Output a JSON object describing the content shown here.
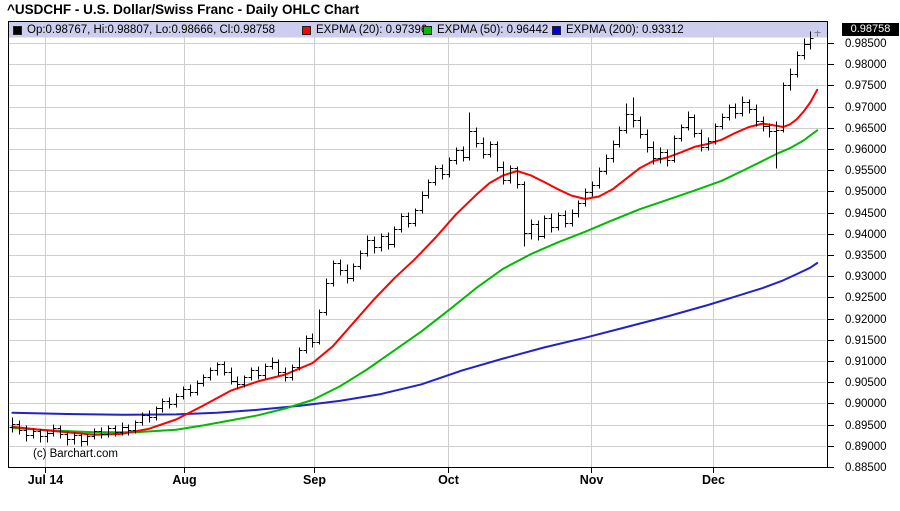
{
  "title": "^USDCHF - U.S. Dollar/Swiss Franc - Daily OHLC Chart",
  "watermark": "(c) Barchart.com",
  "current_price_label": "0.98758",
  "legend": {
    "ohlc": {
      "swatch_color": "#000000",
      "label": "Op:0.98767, Hi:0.98807, Lo:0.98666, Cl:0.98758"
    },
    "expma20": {
      "swatch_color": "#ff0000",
      "label": "EXPMA (20): 0.97396"
    },
    "expma50": {
      "swatch_color": "#00bb00",
      "label": "EXPMA (50): 0.96442"
    },
    "expma200": {
      "swatch_color": "#0000dd",
      "label": "EXPMA (200): 0.93312"
    }
  },
  "chart_data": {
    "type": "bar",
    "subtype": "ohlc-daily",
    "title": "^USDCHF - U.S. Dollar/Swiss Franc - Daily OHLC Chart",
    "xlabel": "",
    "ylabel": "",
    "ylim": [
      0.885,
      0.985
    ],
    "grid": true,
    "colors": {
      "bar": "#000000",
      "current_bar": "#808088",
      "grid": "#cecece",
      "band": "#cdcdee",
      "border": "#000000",
      "price_tag_bg": "#000000"
    },
    "x_ticks": [
      {
        "label": "Jul 14",
        "index": 4.8
      },
      {
        "label": "Aug",
        "index": 25.1
      },
      {
        "label": "Sep",
        "index": 44.2
      },
      {
        "label": "Oct",
        "index": 63.9
      },
      {
        "label": "Nov",
        "index": 84.8
      },
      {
        "label": "Dec",
        "index": 102.7
      }
    ],
    "y_ticks": [
      {
        "value": 0.985,
        "label": "0.98500"
      },
      {
        "value": 0.98,
        "label": "0.98000"
      },
      {
        "value": 0.975,
        "label": "0.97500"
      },
      {
        "value": 0.97,
        "label": "0.97000"
      },
      {
        "value": 0.965,
        "label": "0.96500"
      },
      {
        "value": 0.96,
        "label": "0.96000"
      },
      {
        "value": 0.955,
        "label": "0.95500"
      },
      {
        "value": 0.95,
        "label": "0.95000"
      },
      {
        "value": 0.945,
        "label": "0.94500"
      },
      {
        "value": 0.94,
        "label": "0.94000"
      },
      {
        "value": 0.935,
        "label": "0.93500"
      },
      {
        "value": 0.93,
        "label": "0.93000"
      },
      {
        "value": 0.925,
        "label": "0.92500"
      },
      {
        "value": 0.92,
        "label": "0.92000"
      },
      {
        "value": 0.915,
        "label": "0.91500"
      },
      {
        "value": 0.91,
        "label": "0.91000"
      },
      {
        "value": 0.905,
        "label": "0.90500"
      },
      {
        "value": 0.9,
        "label": "0.90000"
      },
      {
        "value": 0.895,
        "label": "0.89500"
      },
      {
        "value": 0.89,
        "label": "0.89000"
      },
      {
        "value": 0.885,
        "label": "0.88500"
      }
    ],
    "last": {
      "open": 0.98767,
      "high": 0.98807,
      "low": 0.98666,
      "close": 0.98758
    },
    "current_bar_index": 118,
    "bars_ohlc": [
      [
        0.8945,
        0.8968,
        0.8932,
        0.8952
      ],
      [
        0.8952,
        0.896,
        0.8928,
        0.8938
      ],
      [
        0.8938,
        0.8948,
        0.8912,
        0.8925
      ],
      [
        0.8925,
        0.8942,
        0.8918,
        0.8935
      ],
      [
        0.8935,
        0.894,
        0.891,
        0.8922
      ],
      [
        0.8922,
        0.8938,
        0.8908,
        0.893
      ],
      [
        0.893,
        0.8952,
        0.8922,
        0.8942
      ],
      [
        0.8942,
        0.8948,
        0.8918,
        0.8928
      ],
      [
        0.8928,
        0.8935,
        0.8902,
        0.8915
      ],
      [
        0.8915,
        0.8932,
        0.8905,
        0.8925
      ],
      [
        0.8925,
        0.893,
        0.89,
        0.8912
      ],
      [
        0.8912,
        0.8928,
        0.8902,
        0.8922
      ],
      [
        0.8922,
        0.8942,
        0.8915,
        0.8935
      ],
      [
        0.8935,
        0.8945,
        0.8918,
        0.8928
      ],
      [
        0.8928,
        0.895,
        0.892,
        0.8942
      ],
      [
        0.8942,
        0.8948,
        0.8922,
        0.8932
      ],
      [
        0.8932,
        0.8955,
        0.8925,
        0.8945
      ],
      [
        0.8945,
        0.8952,
        0.8925,
        0.8938
      ],
      [
        0.8938,
        0.8962,
        0.893,
        0.8955
      ],
      [
        0.8955,
        0.898,
        0.8948,
        0.8972
      ],
      [
        0.8972,
        0.8985,
        0.8955,
        0.8968
      ],
      [
        0.8968,
        0.8995,
        0.896,
        0.8988
      ],
      [
        0.8988,
        0.9012,
        0.898,
        0.9005
      ],
      [
        0.9005,
        0.9015,
        0.8988,
        0.8998
      ],
      [
        0.8998,
        0.9025,
        0.8992,
        0.9018
      ],
      [
        0.9018,
        0.9042,
        0.901,
        0.9035
      ],
      [
        0.9035,
        0.9045,
        0.9018,
        0.9028
      ],
      [
        0.9028,
        0.9055,
        0.902,
        0.9048
      ],
      [
        0.9048,
        0.907,
        0.904,
        0.9062
      ],
      [
        0.9062,
        0.9085,
        0.9055,
        0.9078
      ],
      [
        0.9078,
        0.9098,
        0.9068,
        0.9092
      ],
      [
        0.9092,
        0.91,
        0.9068,
        0.9075
      ],
      [
        0.9075,
        0.9085,
        0.9045,
        0.9052
      ],
      [
        0.9052,
        0.9065,
        0.9035,
        0.9045
      ],
      [
        0.9045,
        0.9068,
        0.9038,
        0.9062
      ],
      [
        0.9062,
        0.9085,
        0.9055,
        0.9078
      ],
      [
        0.9078,
        0.9088,
        0.9058,
        0.9068
      ],
      [
        0.9068,
        0.9095,
        0.906,
        0.9088
      ],
      [
        0.9088,
        0.911,
        0.908,
        0.9098
      ],
      [
        0.9098,
        0.9105,
        0.9068,
        0.9075
      ],
      [
        0.9075,
        0.9085,
        0.9052,
        0.9062
      ],
      [
        0.9062,
        0.9092,
        0.9055,
        0.9085
      ],
      [
        0.9085,
        0.9132,
        0.9078,
        0.9125
      ],
      [
        0.9125,
        0.9162,
        0.9118,
        0.9155
      ],
      [
        0.9155,
        0.9165,
        0.9132,
        0.9145
      ],
      [
        0.9145,
        0.9222,
        0.914,
        0.9215
      ],
      [
        0.9215,
        0.9295,
        0.9208,
        0.9285
      ],
      [
        0.9285,
        0.9338,
        0.9278,
        0.933
      ],
      [
        0.933,
        0.934,
        0.9302,
        0.9315
      ],
      [
        0.9315,
        0.9328,
        0.9285,
        0.9295
      ],
      [
        0.9295,
        0.9332,
        0.9288,
        0.9325
      ],
      [
        0.9325,
        0.9362,
        0.9318,
        0.9355
      ],
      [
        0.9355,
        0.9398,
        0.9348,
        0.9385
      ],
      [
        0.9385,
        0.9395,
        0.9355,
        0.9368
      ],
      [
        0.9368,
        0.9402,
        0.936,
        0.9395
      ],
      [
        0.9395,
        0.9405,
        0.9365,
        0.9375
      ],
      [
        0.9375,
        0.9418,
        0.9368,
        0.9412
      ],
      [
        0.9412,
        0.945,
        0.9405,
        0.9442
      ],
      [
        0.9442,
        0.9452,
        0.9415,
        0.9425
      ],
      [
        0.9425,
        0.9462,
        0.9418,
        0.9455
      ],
      [
        0.9455,
        0.95,
        0.9448,
        0.9492
      ],
      [
        0.9492,
        0.953,
        0.9485,
        0.9522
      ],
      [
        0.9522,
        0.9562,
        0.9515,
        0.9555
      ],
      [
        0.9555,
        0.9565,
        0.953,
        0.9542
      ],
      [
        0.9542,
        0.9582,
        0.9535,
        0.9575
      ],
      [
        0.9575,
        0.9605,
        0.9565,
        0.9598
      ],
      [
        0.9598,
        0.9608,
        0.9572,
        0.9582
      ],
      [
        0.9582,
        0.9688,
        0.9575,
        0.9642
      ],
      [
        0.9642,
        0.9652,
        0.9605,
        0.9615
      ],
      [
        0.9615,
        0.9628,
        0.9578,
        0.9588
      ],
      [
        0.9588,
        0.9618,
        0.958,
        0.9612
      ],
      [
        0.9612,
        0.962,
        0.9548,
        0.9558
      ],
      [
        0.9558,
        0.9572,
        0.9518,
        0.9528
      ],
      [
        0.9528,
        0.9562,
        0.952,
        0.9555
      ],
      [
        0.9555,
        0.956,
        0.9508,
        0.9518
      ],
      [
        0.9518,
        0.9525,
        0.9372,
        0.9402
      ],
      [
        0.9402,
        0.9435,
        0.9388,
        0.9422
      ],
      [
        0.9422,
        0.9432,
        0.9385,
        0.9395
      ],
      [
        0.9395,
        0.9445,
        0.939,
        0.9438
      ],
      [
        0.9438,
        0.9448,
        0.9405,
        0.9415
      ],
      [
        0.9415,
        0.9452,
        0.9408,
        0.9445
      ],
      [
        0.9445,
        0.9455,
        0.9415,
        0.9425
      ],
      [
        0.9425,
        0.9458,
        0.9418,
        0.9448
      ],
      [
        0.9448,
        0.948,
        0.944,
        0.9472
      ],
      [
        0.9472,
        0.9508,
        0.9465,
        0.9498
      ],
      [
        0.9498,
        0.9525,
        0.949,
        0.9515
      ],
      [
        0.9515,
        0.9558,
        0.9508,
        0.9548
      ],
      [
        0.9548,
        0.9588,
        0.954,
        0.9578
      ],
      [
        0.9578,
        0.9622,
        0.957,
        0.9612
      ],
      [
        0.9612,
        0.9655,
        0.9605,
        0.9645
      ],
      [
        0.9645,
        0.9708,
        0.9638,
        0.9682
      ],
      [
        0.9682,
        0.9722,
        0.9652,
        0.9668
      ],
      [
        0.9668,
        0.9678,
        0.9625,
        0.9635
      ],
      [
        0.9635,
        0.9648,
        0.9592,
        0.9605
      ],
      [
        0.9605,
        0.9618,
        0.9565,
        0.9578
      ],
      [
        0.9578,
        0.9605,
        0.9568,
        0.9592
      ],
      [
        0.9592,
        0.96,
        0.956,
        0.9575
      ],
      [
        0.9575,
        0.9632,
        0.957,
        0.9625
      ],
      [
        0.9625,
        0.966,
        0.9618,
        0.9652
      ],
      [
        0.9652,
        0.969,
        0.9645,
        0.9675
      ],
      [
        0.9675,
        0.9682,
        0.9628,
        0.9638
      ],
      [
        0.9638,
        0.9648,
        0.9595,
        0.9605
      ],
      [
        0.9605,
        0.9628,
        0.9598,
        0.9618
      ],
      [
        0.9618,
        0.9662,
        0.9612,
        0.9655
      ],
      [
        0.9655,
        0.9685,
        0.9648,
        0.9675
      ],
      [
        0.9675,
        0.9705,
        0.9668,
        0.9698
      ],
      [
        0.9698,
        0.9708,
        0.9672,
        0.9685
      ],
      [
        0.9685,
        0.9725,
        0.9678,
        0.9712
      ],
      [
        0.9712,
        0.9718,
        0.9685,
        0.9695
      ],
      [
        0.9695,
        0.9705,
        0.9655,
        0.9665
      ],
      [
        0.9665,
        0.9678,
        0.9642,
        0.9655
      ],
      [
        0.9655,
        0.9662,
        0.9628,
        0.9642
      ],
      [
        0.9642,
        0.9665,
        0.9556,
        0.9645
      ],
      [
        0.9645,
        0.9758,
        0.964,
        0.975
      ],
      [
        0.975,
        0.9792,
        0.9738,
        0.9778
      ],
      [
        0.9778,
        0.9832,
        0.977,
        0.9822
      ],
      [
        0.9822,
        0.9862,
        0.9812,
        0.9848
      ],
      [
        0.9848,
        0.9878,
        0.9835,
        0.9862
      ],
      [
        0.98767,
        0.98807,
        0.98666,
        0.98758
      ]
    ],
    "overlays": [
      {
        "name": "EXPMA (200)",
        "value": 0.93312,
        "color": "#2222cc",
        "points": [
          [
            0,
            0.8978
          ],
          [
            8,
            0.8975
          ],
          [
            16,
            0.8973
          ],
          [
            24,
            0.8974
          ],
          [
            30,
            0.8978
          ],
          [
            36,
            0.8985
          ],
          [
            42,
            0.8994
          ],
          [
            48,
            0.9006
          ],
          [
            54,
            0.9022
          ],
          [
            60,
            0.9045
          ],
          [
            66,
            0.9078
          ],
          [
            72,
            0.9106
          ],
          [
            78,
            0.9132
          ],
          [
            84,
            0.9155
          ],
          [
            90,
            0.918
          ],
          [
            96,
            0.9205
          ],
          [
            102,
            0.9232
          ],
          [
            106,
            0.9252
          ],
          [
            110,
            0.9272
          ],
          [
            113,
            0.929
          ],
          [
            115,
            0.9305
          ],
          [
            117,
            0.932
          ],
          [
            118,
            0.93312
          ]
        ]
      },
      {
        "name": "EXPMA (50)",
        "value": 0.96442,
        "color": "#00bb00",
        "points": [
          [
            0,
            0.8942
          ],
          [
            6,
            0.8936
          ],
          [
            12,
            0.8932
          ],
          [
            18,
            0.8932
          ],
          [
            24,
            0.8938
          ],
          [
            28,
            0.8948
          ],
          [
            32,
            0.896
          ],
          [
            36,
            0.8972
          ],
          [
            40,
            0.8988
          ],
          [
            44,
            0.9008
          ],
          [
            48,
            0.904
          ],
          [
            52,
            0.908
          ],
          [
            56,
            0.9125
          ],
          [
            60,
            0.917
          ],
          [
            64,
            0.922
          ],
          [
            68,
            0.9272
          ],
          [
            72,
            0.9318
          ],
          [
            76,
            0.9352
          ],
          [
            80,
            0.938
          ],
          [
            84,
            0.9405
          ],
          [
            88,
            0.9432
          ],
          [
            92,
            0.9458
          ],
          [
            96,
            0.948
          ],
          [
            100,
            0.9502
          ],
          [
            104,
            0.9525
          ],
          [
            107,
            0.9548
          ],
          [
            110,
            0.9572
          ],
          [
            112,
            0.9588
          ],
          [
            114,
            0.9602
          ],
          [
            116,
            0.962
          ],
          [
            118,
            0.96442
          ]
        ]
      },
      {
        "name": "EXPMA (20)",
        "value": 0.97396,
        "color": "#ff0000",
        "points": [
          [
            0,
            0.8945
          ],
          [
            4,
            0.8938
          ],
          [
            8,
            0.8932
          ],
          [
            12,
            0.8926
          ],
          [
            16,
            0.8928
          ],
          [
            20,
            0.894
          ],
          [
            24,
            0.8962
          ],
          [
            28,
            0.8995
          ],
          [
            32,
            0.903
          ],
          [
            36,
            0.9052
          ],
          [
            40,
            0.9068
          ],
          [
            44,
            0.9095
          ],
          [
            47,
            0.9135
          ],
          [
            50,
            0.919
          ],
          [
            53,
            0.9245
          ],
          [
            56,
            0.9295
          ],
          [
            59,
            0.934
          ],
          [
            62,
            0.939
          ],
          [
            65,
            0.9445
          ],
          [
            68,
            0.9492
          ],
          [
            70,
            0.952
          ],
          [
            72,
            0.9538
          ],
          [
            74,
            0.9548
          ],
          [
            76,
            0.9538
          ],
          [
            78,
            0.9522
          ],
          [
            80,
            0.9505
          ],
          [
            82,
            0.949
          ],
          [
            84,
            0.9482
          ],
          [
            86,
            0.9488
          ],
          [
            88,
            0.9505
          ],
          [
            90,
            0.953
          ],
          [
            92,
            0.9555
          ],
          [
            94,
            0.9572
          ],
          [
            96,
            0.958
          ],
          [
            98,
            0.9592
          ],
          [
            100,
            0.9605
          ],
          [
            102,
            0.9612
          ],
          [
            104,
            0.9622
          ],
          [
            106,
            0.9638
          ],
          [
            108,
            0.9652
          ],
          [
            110,
            0.966
          ],
          [
            112,
            0.9655
          ],
          [
            113,
            0.9652
          ],
          [
            114,
            0.9658
          ],
          [
            115,
            0.967
          ],
          [
            116,
            0.9688
          ],
          [
            117,
            0.971
          ],
          [
            118,
            0.97396
          ]
        ]
      }
    ]
  }
}
